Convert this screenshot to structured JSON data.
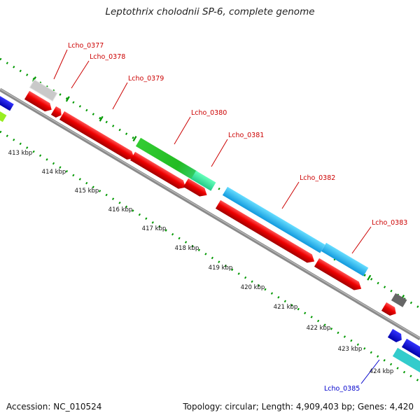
{
  "title": "Leptothrix cholodnii SP-6, complete genome",
  "footer": {
    "accession": "Accession: NC_010524",
    "summary": "Topology: circular; Length: 4,909,403 bp; Genes: 4,420"
  },
  "colors": {
    "label_red": "#cc0000",
    "label_blue": "#0000cc",
    "tick_green": "#009900",
    "backbone": "#8a8a8a"
  },
  "scale_ticks": [
    "413 kbp",
    "414 kbp",
    "415 kbp",
    "416 kbp",
    "417 kbp",
    "418 kbp",
    "419 kbp",
    "420 kbp",
    "421 kbp",
    "422 kbp",
    "423 kbp",
    "424 kbp"
  ],
  "gene_labels": [
    {
      "text": "Lcho_0377",
      "color": "red"
    },
    {
      "text": "Lcho_0378",
      "color": "red"
    },
    {
      "text": "Lcho_0379",
      "color": "red"
    },
    {
      "text": "Lcho_0380",
      "color": "red"
    },
    {
      "text": "Lcho_0381",
      "color": "red"
    },
    {
      "text": "Lcho_0382",
      "color": "red"
    },
    {
      "text": "Lcho_0383",
      "color": "red"
    },
    {
      "text": "Lcho_0385",
      "color": "blue"
    }
  ]
}
